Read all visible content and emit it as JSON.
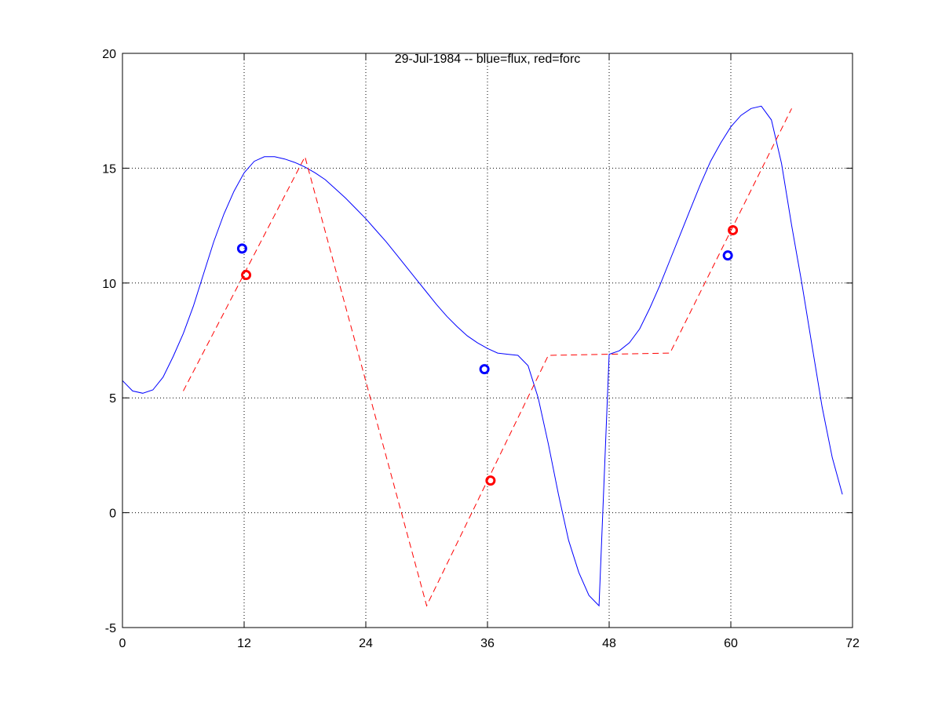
{
  "chart_data": {
    "type": "line",
    "title": "29-Jul-1984 -- blue=flux, red=forc",
    "xlabel": "",
    "ylabel": "",
    "xlim": [
      0,
      72
    ],
    "ylim": [
      -5,
      20
    ],
    "xticks": [
      0,
      12,
      24,
      36,
      48,
      60,
      72
    ],
    "yticks": [
      -5,
      0,
      5,
      10,
      15,
      20
    ],
    "grid": true,
    "series": [
      {
        "name": "flux",
        "color": "#0000ff",
        "style": "solid",
        "x": [
          0,
          1,
          2,
          3,
          4,
          5,
          6,
          7,
          8,
          9,
          10,
          11,
          12,
          13,
          14,
          15,
          16,
          17,
          18,
          19,
          20,
          21,
          22,
          23,
          24,
          25,
          26,
          27,
          28,
          29,
          30,
          31,
          32,
          33,
          34,
          35,
          36,
          37,
          38,
          39,
          40,
          41,
          42,
          43,
          44,
          45,
          46,
          47,
          48,
          49,
          50,
          51,
          52,
          53,
          54,
          55,
          56,
          57,
          58,
          59,
          60,
          61,
          62,
          63,
          64,
          65,
          66,
          67,
          68,
          69,
          70,
          71
        ],
        "y": [
          5.75,
          5.3,
          5.2,
          5.35,
          5.9,
          6.8,
          7.8,
          9.0,
          10.4,
          11.8,
          13.0,
          14.0,
          14.8,
          15.3,
          15.5,
          15.5,
          15.4,
          15.25,
          15.05,
          14.8,
          14.5,
          14.1,
          13.7,
          13.25,
          12.8,
          12.3,
          11.8,
          11.25,
          10.7,
          10.15,
          9.6,
          9.05,
          8.55,
          8.1,
          7.7,
          7.4,
          7.15,
          6.95,
          6.9,
          6.85,
          6.4,
          5.0,
          3.0,
          0.8,
          -1.2,
          -2.6,
          -3.6,
          -4.05,
          6.9,
          7.05,
          7.4,
          8.0,
          8.9,
          9.9,
          11.0,
          12.1,
          13.2,
          14.3,
          15.3,
          16.1,
          16.8,
          17.3,
          17.6,
          17.7,
          17.1,
          15.2,
          12.5,
          10.0,
          7.3,
          4.6,
          2.4,
          0.8
        ]
      },
      {
        "name": "forc",
        "color": "#ff0000",
        "style": "dashed",
        "x": [
          6,
          18,
          30,
          42,
          48,
          54,
          66
        ],
        "y": [
          5.3,
          15.5,
          -4.05,
          6.85,
          6.9,
          6.95,
          17.6
        ]
      }
    ],
    "markers": [
      {
        "name": "flux-mean",
        "color": "#0000ff",
        "x": [
          11.8,
          35.7,
          59.7
        ],
        "y": [
          11.5,
          6.25,
          11.2
        ]
      },
      {
        "name": "forc-mean",
        "color": "#ff0000",
        "x": [
          12.2,
          36.3,
          60.2
        ],
        "y": [
          10.35,
          1.4,
          12.3
        ]
      }
    ]
  }
}
